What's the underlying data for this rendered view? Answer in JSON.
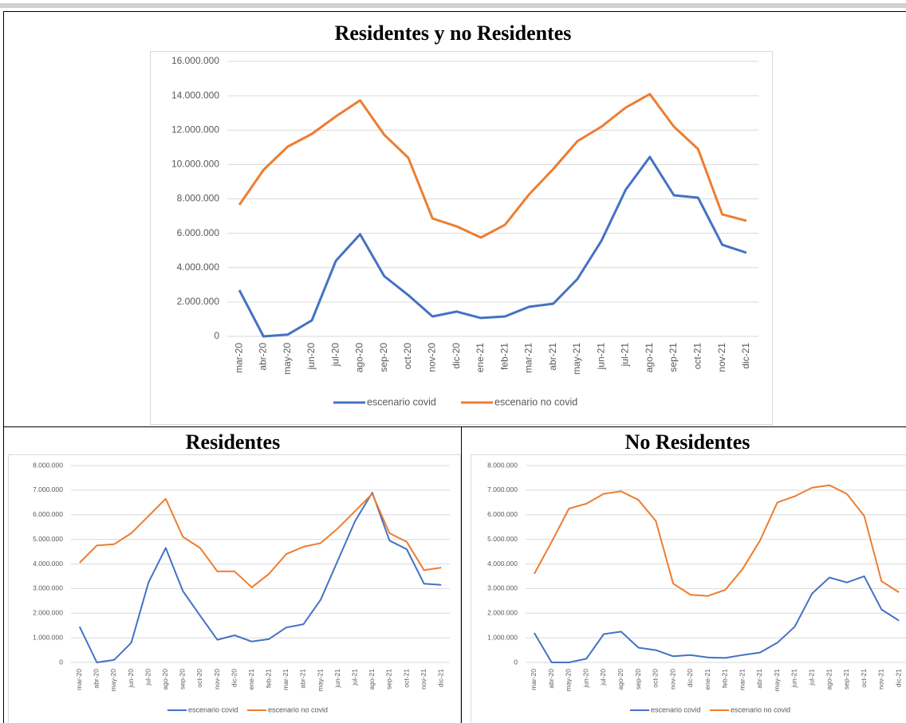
{
  "chart_data": [
    {
      "type": "line",
      "title": "Residentes y no Residentes",
      "categories": [
        "mar-20",
        "abr-20",
        "may-20",
        "jun-20",
        "jul-20",
        "ago-20",
        "sep-20",
        "oct-20",
        "nov-20",
        "dic-20",
        "ene-21",
        "feb-21",
        "mar-21",
        "abr-21",
        "may-21",
        "jun-21",
        "jul-21",
        "ago-21",
        "sep-21",
        "oct-21",
        "nov-21",
        "dic-21"
      ],
      "series": [
        {
          "name": "escenario covid",
          "color": "#4472c4",
          "values": [
            2690000,
            0,
            100000,
            930000,
            4400000,
            5940000,
            3500000,
            2400000,
            1160000,
            1440000,
            1070000,
            1160000,
            1720000,
            1900000,
            3340000,
            5570000,
            8530000,
            10440000,
            8210000,
            8070000,
            5330000,
            4870000
          ]
        },
        {
          "name": "escenario no covid",
          "color": "#ed7d31",
          "values": [
            7650000,
            9690000,
            11040000,
            11780000,
            12800000,
            13730000,
            11730000,
            10390000,
            6860000,
            6400000,
            5750000,
            6490000,
            8260000,
            9740000,
            11360000,
            12200000,
            13310000,
            14100000,
            12200000,
            10900000,
            7100000,
            6730000
          ]
        }
      ],
      "ylim": [
        0,
        16000000
      ],
      "yticks": [
        0,
        {
          "value": 2000000,
          "label": "2.000.000"
        },
        {
          "value": 4000000,
          "label": "4.000.000"
        },
        {
          "value": 6000000,
          "label": "6.000.000"
        },
        {
          "value": 8000000,
          "label": "8.000.000"
        },
        {
          "value": 10000000,
          "label": "10.000.000"
        },
        {
          "value": 12000000,
          "label": "12.000.000"
        },
        {
          "value": 14000000,
          "label": "14.000.000"
        },
        {
          "value": 16000000,
          "label": "16.000.000"
        }
      ],
      "grid": true,
      "legend": "bottom"
    },
    {
      "type": "line",
      "title": "Residentes",
      "categories": [
        "mar-20",
        "abr-20",
        "may-20",
        "jun-20",
        "jul-20",
        "ago-20",
        "sep-20",
        "oct-20",
        "nov-20",
        "dic-20",
        "ene-21",
        "feb-21",
        "mar-21",
        "abr-21",
        "may-21",
        "jun-21",
        "jul-21",
        "ago-21",
        "sep-21",
        "oct-21",
        "nov-21",
        "dic-21"
      ],
      "series": [
        {
          "name": "escenario covid",
          "color": "#4472c4",
          "values": [
            1450000,
            0,
            100000,
            800000,
            3250000,
            4650000,
            2900000,
            1900000,
            920000,
            1100000,
            850000,
            950000,
            1420000,
            1550000,
            2550000,
            4150000,
            5750000,
            6900000,
            4950000,
            4600000,
            3200000,
            3150000
          ]
        },
        {
          "name": "escenario no covid",
          "color": "#ed7d31",
          "values": [
            4050000,
            4750000,
            4800000,
            5250000,
            5950000,
            6650000,
            5100000,
            4650000,
            3700000,
            3700000,
            3050000,
            3600000,
            4400000,
            4700000,
            4850000,
            5450000,
            6150000,
            6850000,
            5250000,
            4900000,
            3750000,
            3850000
          ]
        }
      ],
      "ylim": [
        0,
        8000000
      ],
      "yticks": [
        0,
        {
          "value": 1000000,
          "label": "1.000.000"
        },
        {
          "value": 2000000,
          "label": "2.000.000"
        },
        {
          "value": 3000000,
          "label": "3.000.000"
        },
        {
          "value": 4000000,
          "label": "4.000.000"
        },
        {
          "value": 5000000,
          "label": "5.000.000"
        },
        {
          "value": 6000000,
          "label": "6.000.000"
        },
        {
          "value": 7000000,
          "label": "7.000.000"
        },
        {
          "value": 8000000,
          "label": "8.000.000"
        }
      ],
      "grid": true,
      "legend": "bottom"
    },
    {
      "type": "line",
      "title": "No Residentes",
      "categories": [
        "mar-20",
        "abr-20",
        "may-20",
        "jun-20",
        "jul-20",
        "ago-20",
        "sep-20",
        "oct-20",
        "nov-20",
        "dic-20",
        "ene-21",
        "feb-21",
        "mar-21",
        "abr-21",
        "may-21",
        "jun-21",
        "jul-21",
        "ago-21",
        "sep-21",
        "oct-21",
        "nov-21",
        "dic-21"
      ],
      "series": [
        {
          "name": "escenario covid",
          "color": "#4472c4",
          "values": [
            1200000,
            0,
            0,
            150000,
            1150000,
            1250000,
            600000,
            500000,
            250000,
            300000,
            200000,
            180000,
            300000,
            400000,
            800000,
            1450000,
            2800000,
            3450000,
            3250000,
            3500000,
            2150000,
            1700000
          ]
        },
        {
          "name": "escenario no covid",
          "color": "#ed7d31",
          "values": [
            3600000,
            4900000,
            6250000,
            6450000,
            6850000,
            6950000,
            6600000,
            5750000,
            3200000,
            2750000,
            2700000,
            2950000,
            3800000,
            4950000,
            6500000,
            6750000,
            7100000,
            7200000,
            6850000,
            5950000,
            3300000,
            2850000
          ]
        }
      ],
      "ylim": [
        0,
        8000000
      ],
      "yticks": [
        0,
        {
          "value": 1000000,
          "label": "1.000.000"
        },
        {
          "value": 2000000,
          "label": "2.000.000"
        },
        {
          "value": 3000000,
          "label": "3.000.000"
        },
        {
          "value": 4000000,
          "label": "4.000.000"
        },
        {
          "value": 5000000,
          "label": "5.000.000"
        },
        {
          "value": 6000000,
          "label": "6.000.000"
        },
        {
          "value": 7000000,
          "label": "7.000.000"
        },
        {
          "value": 8000000,
          "label": "8.000.000"
        }
      ],
      "grid": true,
      "legend": "bottom"
    }
  ]
}
